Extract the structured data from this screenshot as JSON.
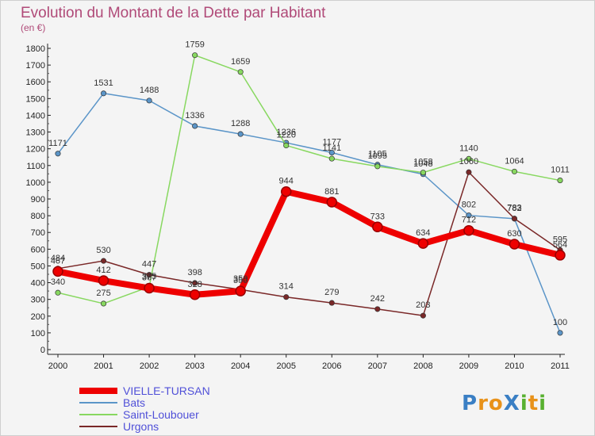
{
  "chart_data": {
    "type": "line",
    "title": "Evolution du Montant de la Dette par Habitant",
    "subtitle": "(en €)",
    "x": [
      "2000",
      "2001",
      "2002",
      "2003",
      "2004",
      "2005",
      "2006",
      "2007",
      "2008",
      "2009",
      "2010",
      "2011"
    ],
    "ylim": [
      0,
      1800
    ],
    "ytick_step": 100,
    "grid": false,
    "legend_position": "bottom-left",
    "series": [
      {
        "name": "VIELLE-TURSAN",
        "color": "#ee0000",
        "values": [
          467,
          412,
          367,
          328,
          350,
          944,
          881,
          733,
          634,
          712,
          630,
          564
        ],
        "emphasis": true
      },
      {
        "name": "Bats",
        "color": "#5b95c8",
        "values": [
          1171,
          1531,
          1488,
          1336,
          1288,
          1236,
          1177,
          1105,
          1048,
          802,
          782,
          100
        ]
      },
      {
        "name": "Saint-Loubouer",
        "color": "#88d860",
        "values": [
          340,
          275,
          375,
          1759,
          1659,
          1220,
          1141,
          1095,
          1058,
          1140,
          1064,
          1011
        ]
      },
      {
        "name": "Urgons",
        "color": "#7a2828",
        "values": [
          484,
          530,
          447,
          398,
          359,
          314,
          279,
          242,
          203,
          1060,
          783,
          595
        ]
      }
    ]
  },
  "brand": {
    "text": "ProXiti",
    "letters": [
      "P",
      "r",
      "o",
      "X",
      "i",
      "t",
      "i"
    ],
    "colors": [
      "#3a7fc4",
      "#e8921a",
      "#e8921a",
      "#3a7fc4",
      "#58b030",
      "#e8921a",
      "#58b030"
    ]
  }
}
